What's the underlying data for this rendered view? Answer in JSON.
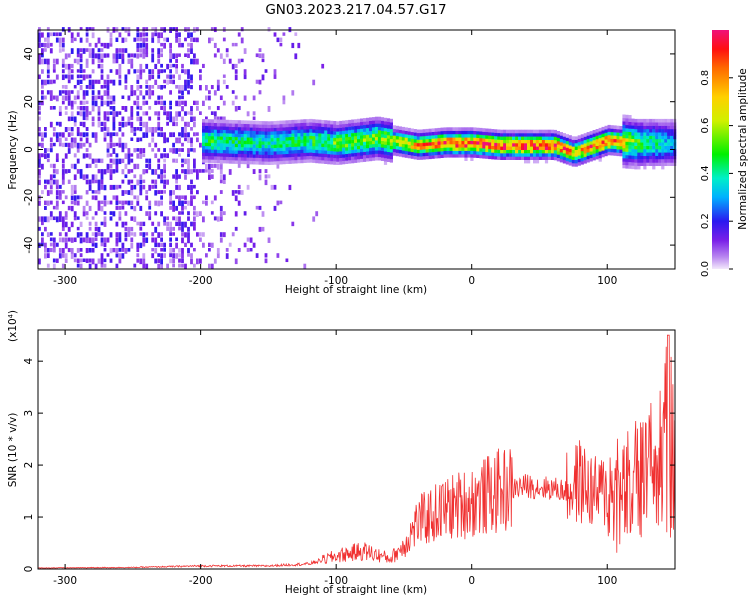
{
  "title": "GN03.2023.217.04.57.G17",
  "chart_data": [
    {
      "type": "heatmap",
      "xlabel": "Height of straight line (km)",
      "ylabel": "Frequency (Hz)",
      "xlim": [
        -320,
        150
      ],
      "ylim": [
        -50,
        50
      ],
      "xticks": [
        -300,
        -200,
        -100,
        0,
        100
      ],
      "yticks": [
        -40,
        -20,
        0,
        20,
        40
      ],
      "colorbar": {
        "label": "Normalized spectral amplitude",
        "ticks": [
          "0.0",
          "0.2",
          "0.4",
          "0.6",
          "0.8"
        ],
        "range": [
          0,
          1
        ]
      },
      "ridge": {
        "x": [
          -200,
          -150,
          -120,
          -100,
          -70,
          -60,
          -40,
          -20,
          0,
          20,
          40,
          60,
          75,
          85,
          100,
          120,
          150
        ],
        "y": [
          3,
          2,
          3,
          2,
          4,
          3,
          1,
          2,
          2,
          1,
          1,
          1,
          -2,
          0,
          3,
          2,
          2
        ],
        "peak_amplitude": [
          0.45,
          0.4,
          0.45,
          0.5,
          0.55,
          0.6,
          0.75,
          0.85,
          0.9,
          0.9,
          0.9,
          0.9,
          0.7,
          0.8,
          0.9,
          0.5,
          0.3
        ]
      }
    },
    {
      "type": "line",
      "xlabel": "Height of straight line (km)",
      "ylabel": "SNR (10 * v/v)",
      "y_multiplier": "(x10⁴)",
      "xlim": [
        -320,
        150
      ],
      "ylim": [
        0,
        4.6
      ],
      "xticks": [
        -300,
        -200,
        -100,
        0,
        100
      ],
      "yticks": [
        0,
        1,
        2,
        3,
        4
      ],
      "color": "#f03030",
      "series": [
        {
          "x": [
            -320,
            -250,
            -200,
            -150,
            -120,
            -100,
            -80,
            -60,
            -50,
            -40,
            -20,
            0,
            20,
            40,
            60,
            70,
            80,
            90,
            100,
            110,
            120,
            130,
            140,
            145,
            150
          ],
          "values": [
            0.02,
            0.03,
            0.06,
            0.06,
            0.1,
            0.25,
            0.35,
            0.2,
            0.45,
            0.9,
            1.15,
            1.3,
            1.5,
            1.6,
            1.55,
            1.5,
            1.7,
            1.45,
            1.5,
            1.3,
            1.6,
            1.7,
            2.0,
            2.6,
            2.0
          ]
        }
      ]
    }
  ]
}
